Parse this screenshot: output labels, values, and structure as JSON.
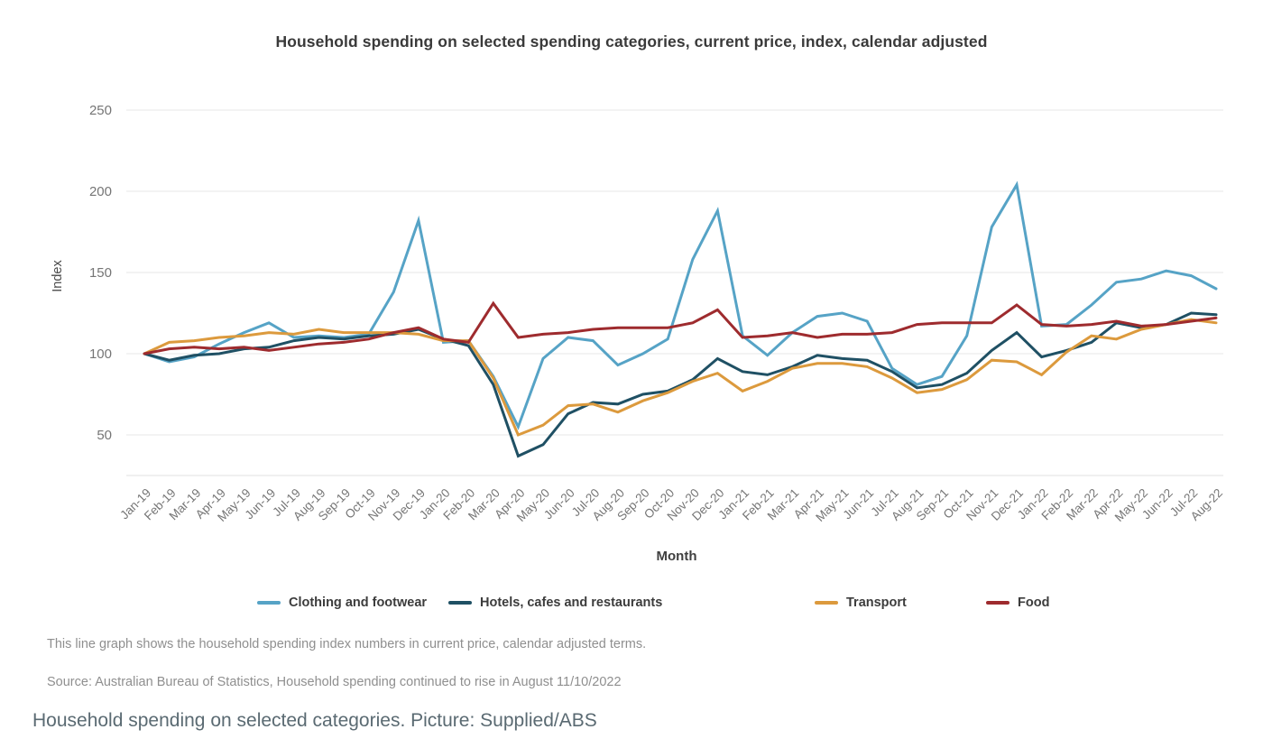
{
  "page": {
    "title": "Household spending on selected spending categories, current price, index, calendar adjusted",
    "description_line": "This line graph shows the household spending index numbers in current price, calendar adjusted terms.",
    "source_line": "Source: Australian Bureau of Statistics, Household spending continued to rise in August 11/10/2022",
    "picture_caption": "Household spending on selected categories. Picture: Supplied/ABS"
  },
  "colors": {
    "grid": "#e7e7e7",
    "axis_border": "#e0e0e0",
    "tick_label": "#757575",
    "axis_title": "#4a4a4a"
  },
  "chart_data": {
    "type": "line",
    "title": "Household spending on selected spending categories, current price, index, calendar adjusted",
    "xlabel": "Month",
    "ylabel": "Index",
    "ylim": [
      25,
      262
    ],
    "yticks": [
      50,
      100,
      150,
      200,
      250
    ],
    "grid": true,
    "legend_position": "bottom",
    "categories": [
      "Jan-19",
      "Feb-19",
      "Mar-19",
      "Apr-19",
      "May-19",
      "Jun-19",
      "Jul-19",
      "Aug-19",
      "Sep-19",
      "Oct-19",
      "Nov-19",
      "Dec-19",
      "Jan-20",
      "Feb-20",
      "Mar-20",
      "Apr-20",
      "May-20",
      "Jun-20",
      "Jul-20",
      "Aug-20",
      "Sep-20",
      "Oct-20",
      "Nov-20",
      "Dec-20",
      "Jan-21",
      "Feb-21",
      "Mar-21",
      "Apr-21",
      "May-21",
      "Jun-21",
      "Jul-21",
      "Aug-21",
      "Sep-21",
      "Oct-21",
      "Nov-21",
      "Dec-21",
      "Jan-22",
      "Feb-22",
      "Mar-22",
      "Apr-22",
      "May-22",
      "Jun-22",
      "Jul-22",
      "Aug-22"
    ],
    "series": [
      {
        "name": "Clothing and footwear",
        "color": "#56a3c6",
        "values": [
          100,
          95,
          98,
          106,
          113,
          119,
          110,
          111,
          110,
          112,
          138,
          182,
          107,
          108,
          86,
          55,
          97,
          110,
          108,
          93,
          100,
          109,
          158,
          188,
          111,
          99,
          113,
          123,
          125,
          120,
          91,
          81,
          86,
          111,
          178,
          204,
          117,
          118,
          130,
          144,
          146,
          151,
          148,
          140
        ]
      },
      {
        "name": "Hotels, cafes and restaurants",
        "color": "#1f5064",
        "values": [
          100,
          96,
          99,
          100,
          103,
          104,
          108,
          110,
          109,
          111,
          112,
          115,
          109,
          105,
          81,
          37,
          44,
          63,
          70,
          69,
          75,
          77,
          84,
          97,
          89,
          87,
          92,
          99,
          97,
          96,
          89,
          79,
          81,
          88,
          102,
          113,
          98,
          102,
          107,
          119,
          116,
          118,
          125,
          124
        ]
      },
      {
        "name": "Transport",
        "color": "#dc9a3d",
        "values": [
          100,
          107,
          108,
          110,
          111,
          113,
          112,
          115,
          113,
          113,
          113,
          112,
          108,
          108,
          85,
          50,
          56,
          68,
          69,
          64,
          71,
          76,
          83,
          88,
          77,
          83,
          91,
          94,
          94,
          92,
          85,
          76,
          78,
          84,
          96,
          95,
          87,
          101,
          111,
          109,
          115,
          118,
          121,
          119
        ]
      },
      {
        "name": "Food",
        "color": "#9e2b2e",
        "values": [
          100,
          103,
          104,
          103,
          104,
          102,
          104,
          106,
          107,
          109,
          113,
          116,
          109,
          107,
          131,
          110,
          112,
          113,
          115,
          116,
          116,
          116,
          119,
          127,
          110,
          111,
          113,
          110,
          112,
          112,
          113,
          118,
          119,
          119,
          119,
          130,
          118,
          117,
          118,
          120,
          117,
          118,
          120,
          122
        ]
      }
    ]
  }
}
